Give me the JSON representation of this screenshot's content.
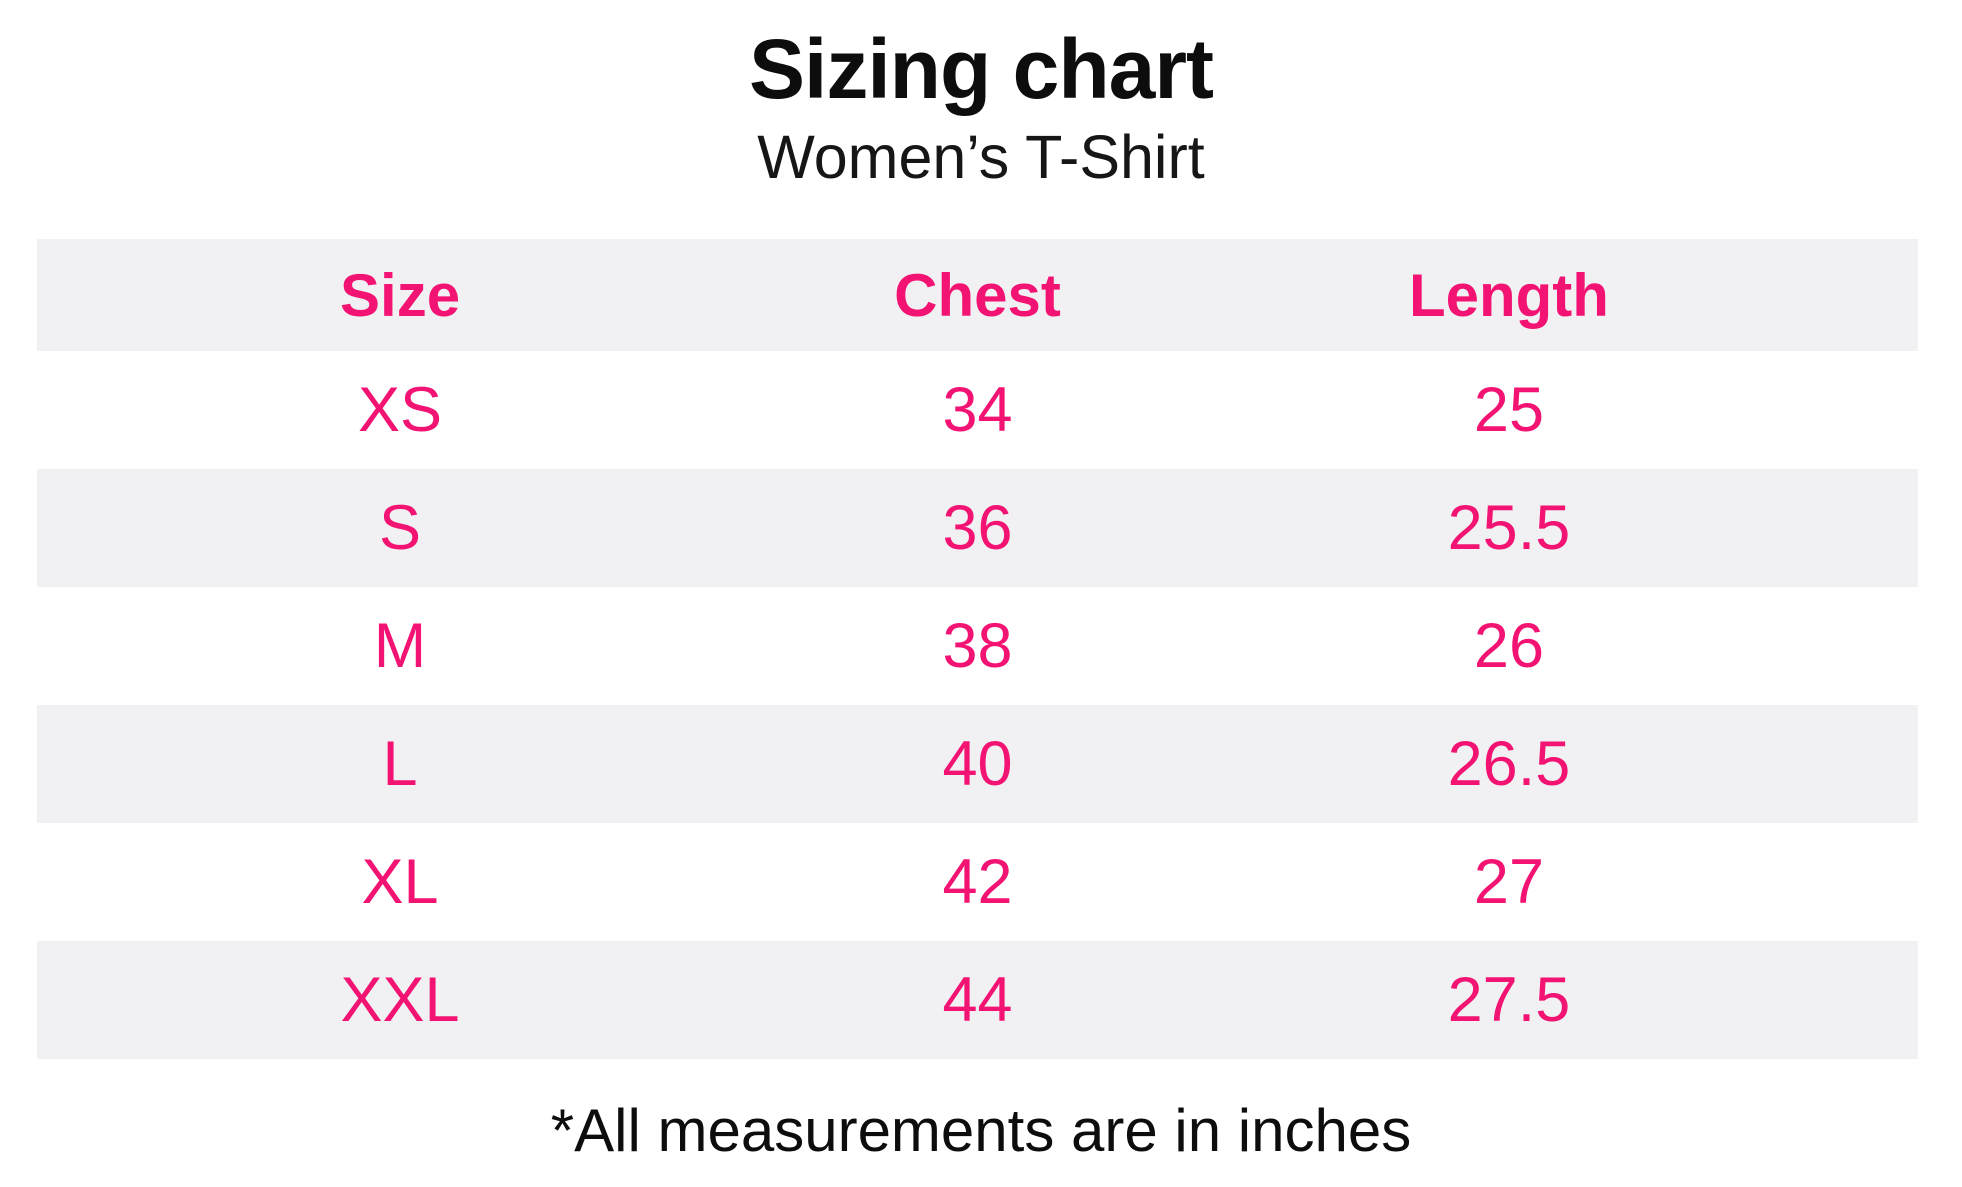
{
  "page": {
    "title": "Sizing chart",
    "subtitle": "Women’s T-Shirt",
    "footnote": "*All measurements are in inches"
  },
  "colors": {
    "accent_pink": "#f21372",
    "row_stripe_gray": "#f1f1f3",
    "text_black": "#0d0d0d",
    "background": "#ffffff"
  },
  "table": {
    "headers": [
      "Size",
      "Chest",
      "Length"
    ],
    "rows": [
      [
        "XS",
        "34",
        "25"
      ],
      [
        "S",
        "36",
        "25.5"
      ],
      [
        "M",
        "38",
        "26"
      ],
      [
        "L",
        "40",
        "26.5"
      ],
      [
        "XL",
        "42",
        "27"
      ],
      [
        "XXL",
        "44",
        "27.5"
      ]
    ]
  },
  "chart_data": {
    "type": "table",
    "title": "Sizing chart",
    "subtitle": "Women’s T-Shirt",
    "columns": [
      "Size",
      "Chest",
      "Length"
    ],
    "rows": [
      [
        "XS",
        34,
        25
      ],
      [
        "S",
        36,
        25.5
      ],
      [
        "M",
        38,
        26
      ],
      [
        "L",
        40,
        26.5
      ],
      [
        "XL",
        42,
        27
      ],
      [
        "XXL",
        44,
        27.5
      ]
    ],
    "units": "inches",
    "footnote": "*All measurements are in inches",
    "layout": {
      "header_text_color": "#f21372",
      "value_text_color": "#f21372",
      "striped_rows": true,
      "stripe_color": "#f1f1f3",
      "grid": false
    }
  }
}
